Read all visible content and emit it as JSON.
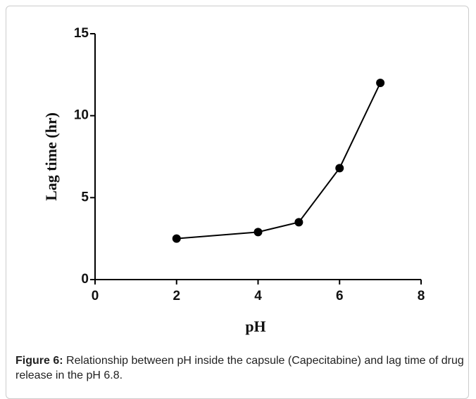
{
  "chart_data": {
    "type": "line",
    "x_label": "pH",
    "y_label": "Lag time (hr)",
    "x": [
      2,
      4,
      5,
      6,
      7
    ],
    "series": [
      {
        "color": "#000000",
        "values": [
          2.5,
          2.9,
          3.5,
          6.8,
          12
        ]
      }
    ],
    "xlim": [
      0,
      8
    ],
    "xticks": [
      0,
      2,
      4,
      6,
      8
    ],
    "ylim": [
      0,
      15
    ],
    "yticks": [
      0,
      5,
      10,
      15
    ]
  },
  "caption": {
    "label": "Figure 6:",
    "text": "Relationship between pH inside the capsule (Capecitabine) and lag time of drug release in the pH 6.8."
  }
}
